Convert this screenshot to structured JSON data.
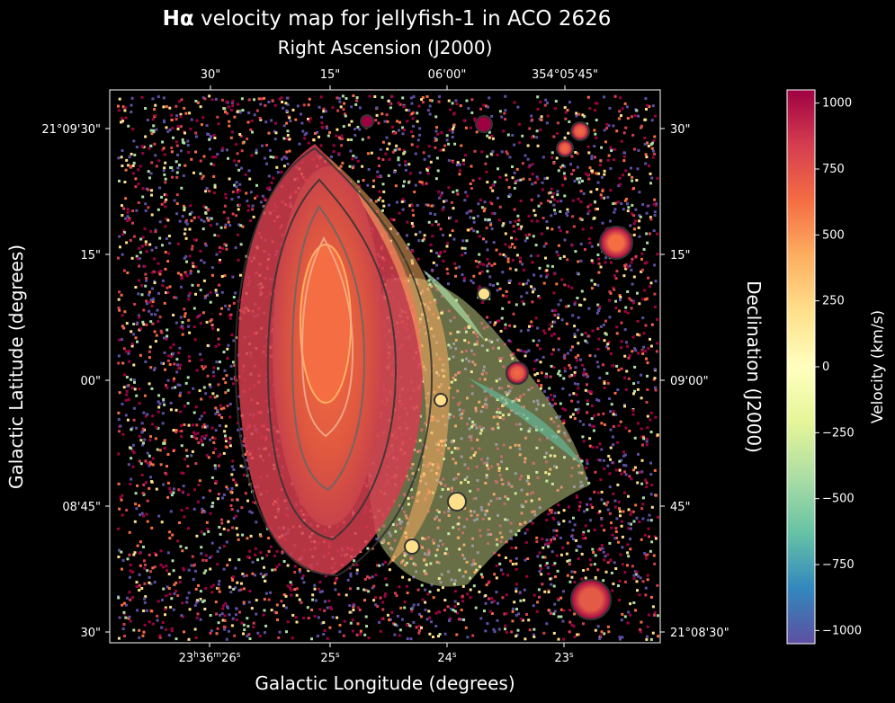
{
  "chart_data": {
    "type": "heatmap",
    "title_bold": "Hα",
    "title_rest": " velocity map for jellyfish-1 in ACO 2626",
    "top_axis_label": "Right Ascension (J2000)",
    "bottom_axis_label": "Galactic Longitude (degrees)",
    "left_axis_label": "Galactic Latitude (degrees)",
    "right_axis_label": "Declination (J2000)",
    "colorbar": {
      "label": "Velocity (km/s)",
      "colormap": "Spectral_r",
      "range": [
        -1050,
        1050
      ],
      "ticks": [
        1000,
        750,
        500,
        250,
        0,
        -250,
        -500,
        -750,
        -1000
      ],
      "tick_labels": [
        "1000",
        "750",
        "500",
        "250",
        "0",
        "−250",
        "−500",
        "−750",
        "−1000"
      ],
      "colors": [
        "#5e4fa2",
        "#3288bd",
        "#66c2a5",
        "#abdda4",
        "#e6f598",
        "#ffffbf",
        "#fee08b",
        "#fdae61",
        "#f46d43",
        "#d53e4f",
        "#9e0142"
      ]
    },
    "bottom_ticks": [
      {
        "main": "23",
        "sup1": "h",
        "main2": "36",
        "sup2": "m",
        "main3": "26",
        "sup3": "s"
      },
      {
        "main": "25",
        "sup1": "s"
      },
      {
        "main": "24",
        "sup1": "s"
      },
      {
        "main": "23",
        "sup1": "s"
      }
    ],
    "top_ticks": [
      "30\"",
      "15\"",
      "06'00\"",
      "354°05'45\""
    ],
    "left_ticks": [
      "21°09'30\"",
      "15\"",
      "00\"",
      "08'45\"",
      "30\""
    ],
    "right_ticks": [
      "30\"",
      "15\"",
      "09'00\"",
      "45\"",
      "21°08'30\""
    ]
  }
}
